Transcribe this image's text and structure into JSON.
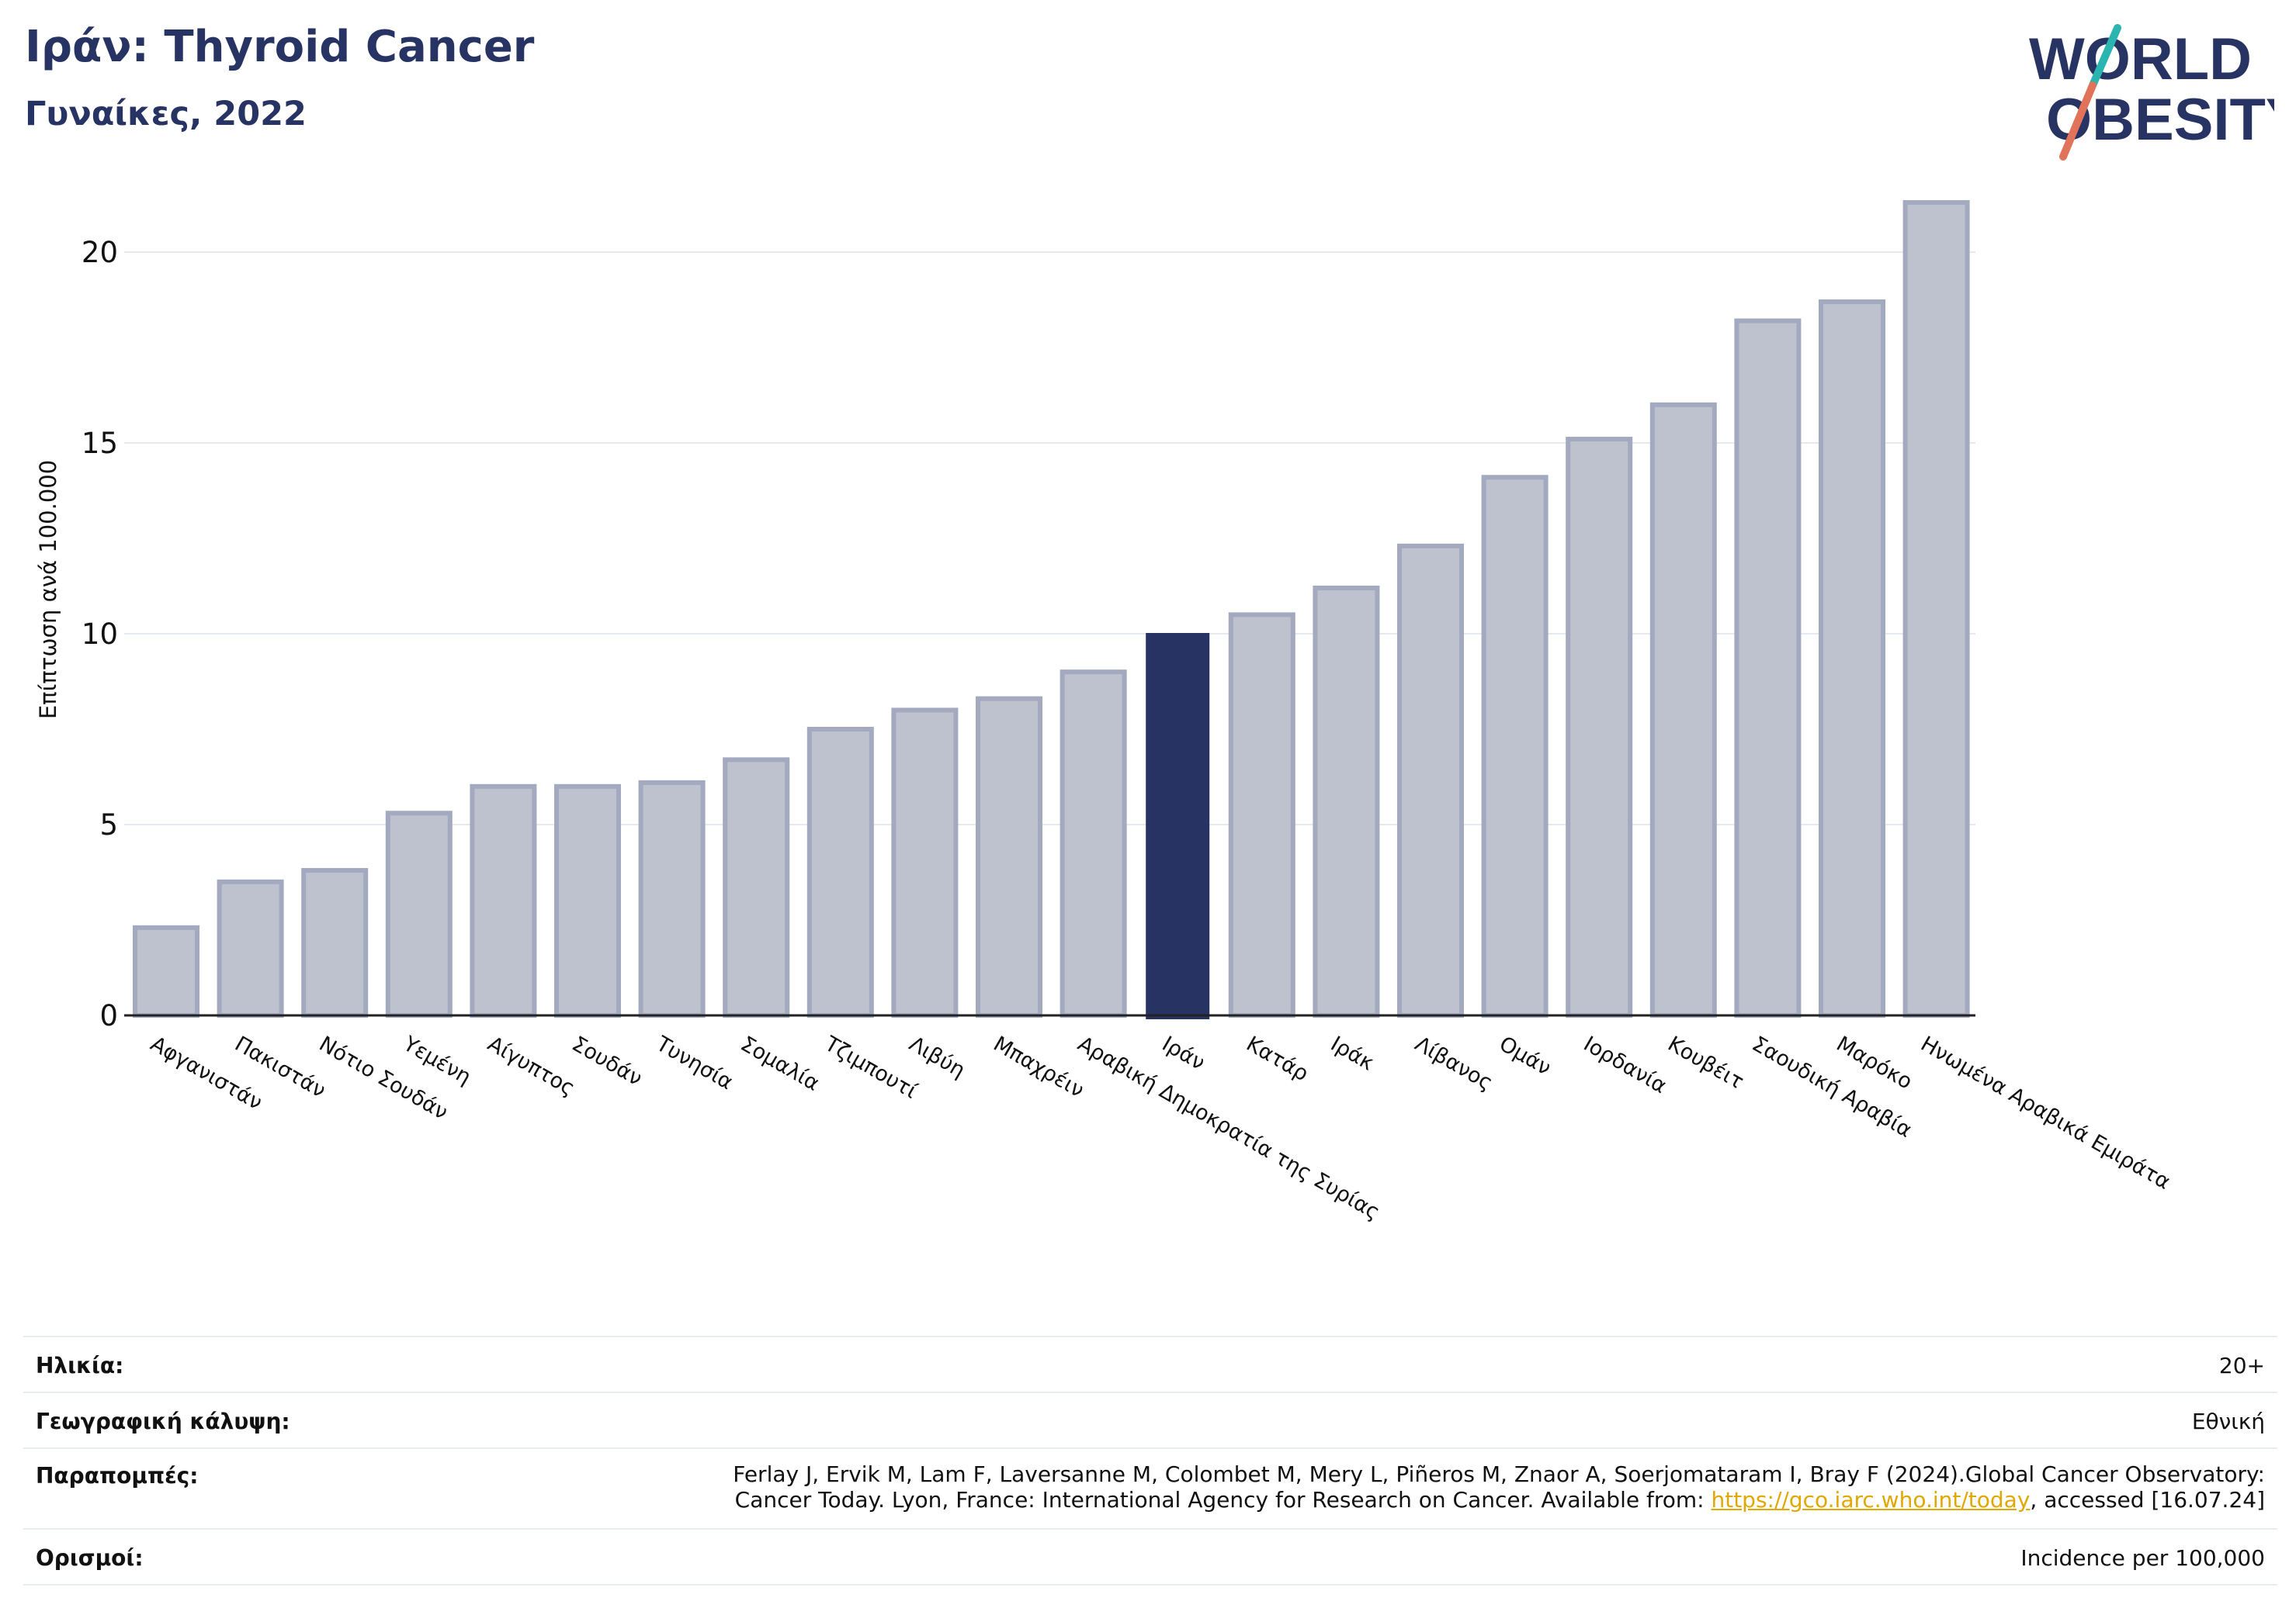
{
  "header": {
    "title": "Ιράν: Thyroid Cancer",
    "subtitle": "Γυναίκες, 2022"
  },
  "logo": {
    "line1": "WORLD",
    "line2": "OBESITY",
    "colors": {
      "text": "#273362",
      "slash_top": "#2bb5b0",
      "slash_bottom": "#e0735a"
    }
  },
  "colors": {
    "highlight_bar": "#273362",
    "other_bar_fill": "#bec2cf",
    "other_bar_stroke": "#a3a9be",
    "grid": "#e6e9ef",
    "axis": "#222222",
    "link": "#e0a800"
  },
  "chart_data": {
    "type": "bar",
    "title": "Ιράν: Thyroid Cancer",
    "subtitle": "Γυναίκες, 2022",
    "xlabel": "",
    "ylabel": "Επίπτωση ανά 100.000",
    "ylim": [
      0,
      22
    ],
    "yticks": [
      0,
      5,
      10,
      15,
      20
    ],
    "grid": true,
    "highlight": "Ιράν",
    "categories": [
      "Αφγανιστάν",
      "Πακιστάν",
      "Νότιο Σουδάν",
      "Υεμένη",
      "Αίγυπτος",
      "Σουδάν",
      "Τυνησία",
      "Σομαλία",
      "Τζιμπουτί",
      "Λιβύη",
      "Μπαχρέιν",
      "Αραβική Δημοκρατία της Συρίας",
      "Ιράν",
      "Κατάρ",
      "Ιράκ",
      "Λίβανος",
      "Ομάν",
      "Ιορδανία",
      "Κουβέιτ",
      "Σαουδική Αραβία",
      "Μαρόκο",
      "Ηνωμένα Αραβικά Εμιράτα"
    ],
    "values": [
      2.3,
      3.5,
      3.8,
      5.3,
      6.0,
      6.0,
      6.1,
      6.7,
      7.5,
      8.0,
      8.3,
      9.0,
      10.0,
      10.5,
      11.2,
      12.3,
      14.1,
      15.1,
      16.0,
      18.2,
      18.7,
      21.3
    ]
  },
  "info": {
    "age_label": "Ηλικία:",
    "age_value": "20+",
    "geo_label": "Γεωγραφική κάλυψη:",
    "geo_value": "Εθνική",
    "ref_label": "Παραπομπές:",
    "ref_line1": "Ferlay J, Ervik M, Lam F, Laversanne M, Colombet M, Mery L, Piñeros M, Znaor A, Soerjomataram I, Bray F (2024).Global Cancer Observatory:",
    "ref_line2_before": "Cancer Today. Lyon, France: International Agency for Research on Cancer. Available from: ",
    "ref_link": "https://gco.iarc.who.int/today",
    "ref_line2_after": ", accessed [16.07.24]",
    "def_label": "Ορισμοί:",
    "def_value": "Incidence per 100,000"
  }
}
